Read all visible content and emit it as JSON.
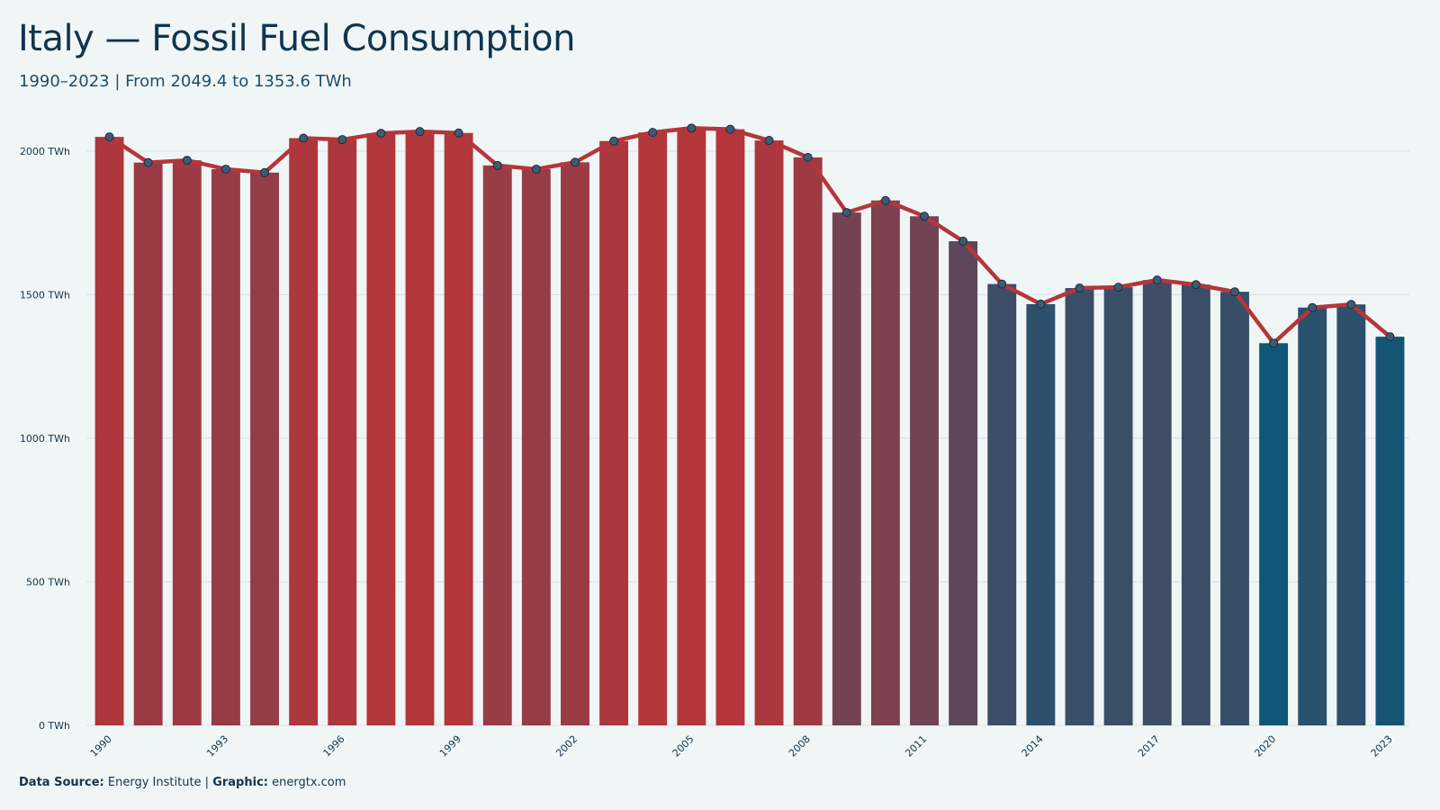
{
  "header": {
    "title": "Italy — Fossil Fuel Consumption",
    "subtitle": "1990–2023 | From 2049.4 to 1353.6 TWh"
  },
  "footer": {
    "source_label": "Data Source:",
    "source_value": "Energy Institute |",
    "graphic_label": "Graphic:",
    "graphic_value": "energtx.com"
  },
  "colors": {
    "high": "#b5363a",
    "low": "#0f5678",
    "line": "#b5363a",
    "marker": "#3f5a74",
    "grid": "#d6e0e3"
  },
  "chart_data": {
    "type": "bar",
    "overlay": "line",
    "x": [
      1990,
      1991,
      1992,
      1993,
      1994,
      1995,
      1996,
      1997,
      1998,
      1999,
      2000,
      2001,
      2002,
      2003,
      2004,
      2005,
      2006,
      2007,
      2008,
      2009,
      2010,
      2011,
      2012,
      2013,
      2014,
      2015,
      2016,
      2017,
      2018,
      2019,
      2020,
      2021,
      2022,
      2023
    ],
    "values": [
      2049.4,
      1960,
      1968,
      1937,
      1925,
      2045,
      2040,
      2062,
      2068,
      2063,
      1950,
      1937,
      1961,
      2035,
      2065,
      2080,
      2076,
      2037,
      1978,
      1786,
      1828,
      1773,
      1686,
      1537,
      1467,
      1523,
      1526,
      1551,
      1535,
      1510,
      1331,
      1455,
      1466,
      1353.6
    ],
    "x_tick_labels": [
      "1990",
      "1993",
      "1996",
      "1999",
      "2002",
      "2005",
      "2008",
      "2011",
      "2014",
      "2017",
      "2020",
      "2023"
    ],
    "y_ticks": [
      0,
      500,
      1000,
      1500,
      2000
    ],
    "y_tick_labels": [
      "0 TWh",
      "500 TWh",
      "1000 TWh",
      "1500 TWh",
      "2000 TWh"
    ],
    "ylim": [
      0,
      2150
    ],
    "grid": "horizontal",
    "legend": "none"
  }
}
